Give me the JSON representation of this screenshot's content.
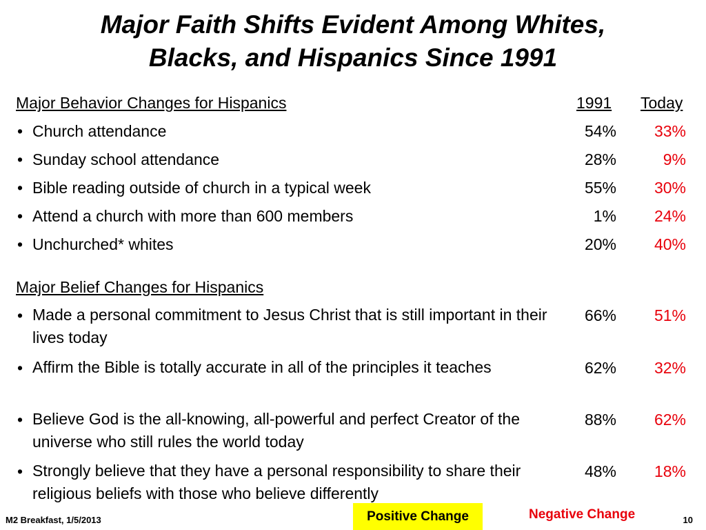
{
  "slide": {
    "title_line1": "Major Faith Shifts Evident Among Whites,",
    "title_line2": "Blacks, and Hispanics Since 1991"
  },
  "behavior": {
    "header": "Major Behavior Changes for Hispanics",
    "col_1991": "1991",
    "col_today": "Today",
    "rows": [
      {
        "label": "Church attendance",
        "y1991": "54%",
        "today": "33%"
      },
      {
        "label": "Sunday school attendance",
        "y1991": "28%",
        "today": "9%"
      },
      {
        "label": "Bible reading outside of church in a typical week",
        "y1991": "55%",
        "today": "30%"
      },
      {
        "label": "Attend a church with more than 600 members",
        "y1991": "1%",
        "today": "24%"
      },
      {
        "label": "Unchurched* whites",
        "y1991": "20%",
        "today": "40%"
      }
    ]
  },
  "belief": {
    "header": "Major Belief Changes for Hispanics",
    "rows": [
      {
        "label": "Made a personal commitment to Jesus Christ that is still important in their lives today",
        "y1991": "66%",
        "today": "51%"
      },
      {
        "label": "Affirm the Bible is totally accurate in all of the principles it teaches",
        "y1991": "62%",
        "today": "32%"
      },
      {
        "label": "Believe God is the all-knowing, all-powerful and perfect Creator of the universe who still rules the world today",
        "y1991": "88%",
        "today": "62%"
      },
      {
        "label": "Strongly believe that they have a personal responsibility to share their religious beliefs with those who believe differently",
        "y1991": "48%",
        "today": "18%"
      }
    ]
  },
  "legend": {
    "positive": "Positive Change",
    "negative": "Negative Change",
    "positive_color": "#ffff00",
    "negative_color": "#e8000b"
  },
  "footer": {
    "left": "M2 Breakfast, 1/5/2013",
    "page": "10"
  }
}
